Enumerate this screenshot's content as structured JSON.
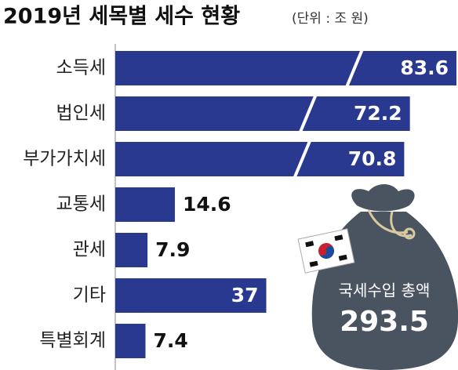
{
  "chart_data": {
    "type": "bar",
    "orientation": "horizontal",
    "title": "2019년 세목별 세수 현황",
    "subtitle": "(단위 : 조 원)",
    "categories": [
      "소득세",
      "법인세",
      "부가가치세",
      "교통세",
      "관세",
      "기타",
      "특별회계"
    ],
    "values": [
      83.6,
      72.2,
      70.8,
      14.6,
      7.9,
      37,
      7.4
    ],
    "color": "#2a3990",
    "total": {
      "label": "국세수입 총액",
      "value": 293.5
    }
  }
}
